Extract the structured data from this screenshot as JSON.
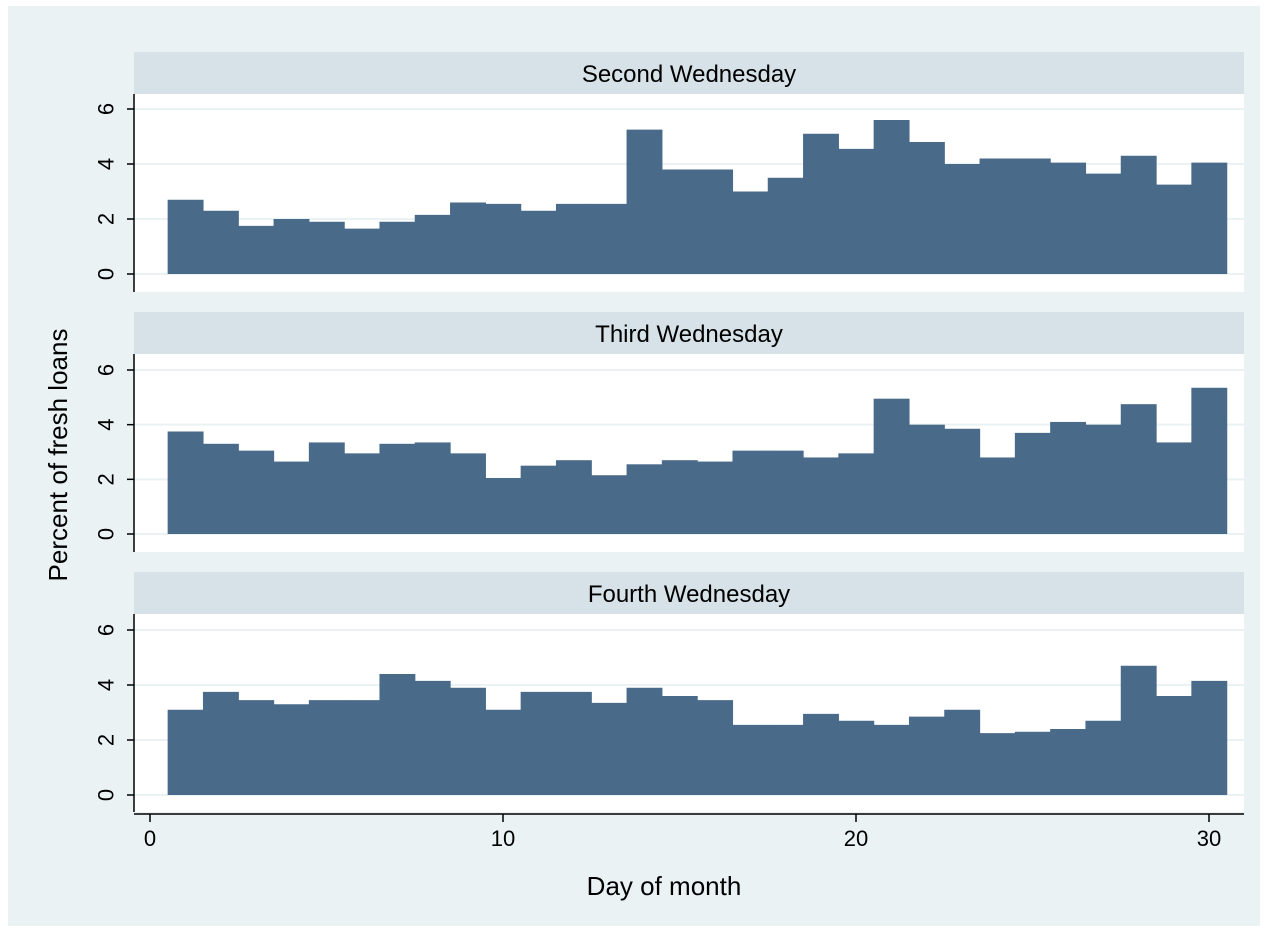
{
  "chart_data": {
    "type": "bar",
    "ylabel": "Percent of fresh loans",
    "xlabel": "Day of month",
    "xlim": [
      0,
      31
    ],
    "ylim": [
      0,
      6
    ],
    "x_ticks": [
      0,
      10,
      20,
      30
    ],
    "y_ticks": [
      0,
      2,
      4,
      6
    ],
    "bar_color": "#4a6a8a",
    "plot_bg": "#ffffff",
    "outer_bg": "#eaf2f3",
    "strip_bg": "#d6e2e7",
    "grid": true,
    "x": [
      1,
      2,
      3,
      4,
      5,
      6,
      7,
      8,
      9,
      10,
      11,
      12,
      13,
      14,
      15,
      16,
      17,
      18,
      19,
      20,
      21,
      22,
      23,
      24,
      25,
      26,
      27,
      28,
      29,
      30
    ],
    "panels": [
      {
        "title": "Second Wednesday",
        "values": [
          2.7,
          2.3,
          1.75,
          2.0,
          1.9,
          1.65,
          1.9,
          2.15,
          2.6,
          2.55,
          2.3,
          2.55,
          2.55,
          5.25,
          3.8,
          3.8,
          3.0,
          3.5,
          5.1,
          4.55,
          5.6,
          4.8,
          4.0,
          4.2,
          4.2,
          4.05,
          3.65,
          4.3,
          3.25,
          4.05
        ]
      },
      {
        "title": "Third Wednesday",
        "values": [
          3.75,
          3.3,
          3.05,
          2.65,
          3.35,
          2.95,
          3.3,
          3.35,
          2.95,
          2.05,
          2.5,
          2.7,
          2.15,
          2.55,
          2.7,
          2.65,
          3.05,
          3.05,
          2.8,
          2.95,
          4.95,
          4.0,
          3.85,
          2.8,
          3.7,
          4.1,
          4.0,
          4.75,
          3.35,
          5.35
        ]
      },
      {
        "title": "Fourth Wednesday",
        "values": [
          3.1,
          3.75,
          3.45,
          3.3,
          3.45,
          3.45,
          4.4,
          4.15,
          3.9,
          3.1,
          3.75,
          3.75,
          3.35,
          3.9,
          3.6,
          3.45,
          2.55,
          2.55,
          2.95,
          2.7,
          2.55,
          2.85,
          3.1,
          2.25,
          2.3,
          2.4,
          2.7,
          4.7,
          3.6,
          4.15
        ]
      }
    ]
  }
}
